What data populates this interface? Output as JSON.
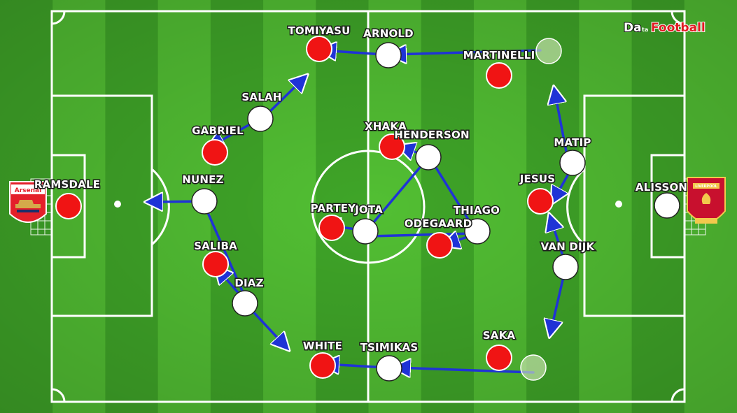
{
  "brand": {
    "part1": "Da",
    "part2": "ta",
    "part3": "Football"
  },
  "colors": {
    "arsenal": "#f01414",
    "liverpool": "#ffffff",
    "arrow": "#1f33d6",
    "pitch_dark": "#3fa528",
    "pitch_light": "#52bf33",
    "line": "#ffffff"
  },
  "teams": {
    "arsenal": {
      "badge_text": "Arsenal",
      "badge_icon": "arsenal-crest-icon"
    },
    "liverpool": {
      "badge_text": "LIVERPOOL",
      "badge_icon": "liverpool-crest-icon"
    }
  },
  "players": {
    "tomiyasu": "TOMIYASU",
    "arnold": "ARNOLD",
    "martinelli": "MARTINELLI",
    "salah": "SALAH",
    "gabriel": "GABRIEL",
    "xhaka": "XHAKA",
    "henderson": "HENDERSON",
    "matip": "MATIP",
    "ramsdale": "RAMSDALE",
    "nunez": "NUNEZ",
    "jesus": "JESUS",
    "alisson": "ALISSON",
    "partey": "PARTEY",
    "jota": "JOTA",
    "thiago": "THIAGO",
    "odegaard": "ODEGAARD",
    "saliba": "SALIBA",
    "van_dijk": "VAN DIJK",
    "diaz": "DIAZ",
    "white": "WHITE",
    "tsimikas": "TSIMIKAS",
    "saka": "SAKA"
  }
}
